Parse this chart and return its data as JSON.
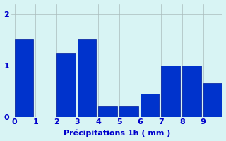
{
  "xlabel": "Précipitations 1h ( mm )",
  "bar_color": "#0033cc",
  "edge_color": "#001a99",
  "background_color": "#d8f4f4",
  "ylim": [
    0,
    2.2
  ],
  "yticks": [
    0,
    1,
    2
  ],
  "xtick_positions": [
    0,
    1,
    2,
    3,
    4,
    5,
    6,
    7,
    8,
    9
  ],
  "xtick_labels": [
    "0",
    "1",
    "2",
    "3",
    "4",
    "5",
    "6",
    "7",
    "8",
    "9"
  ],
  "grid_color": "#aabbbb",
  "tick_color": "#0000cc",
  "label_color": "#0000cc",
  "bar_lefts": [
    0,
    1,
    2,
    3,
    4,
    5,
    6,
    7,
    8,
    9
  ],
  "bar_heights": [
    1.5,
    0.0,
    1.25,
    1.5,
    0.2,
    0.2,
    0.45,
    1.0,
    1.0,
    0.65
  ],
  "bar_width": 0.9
}
